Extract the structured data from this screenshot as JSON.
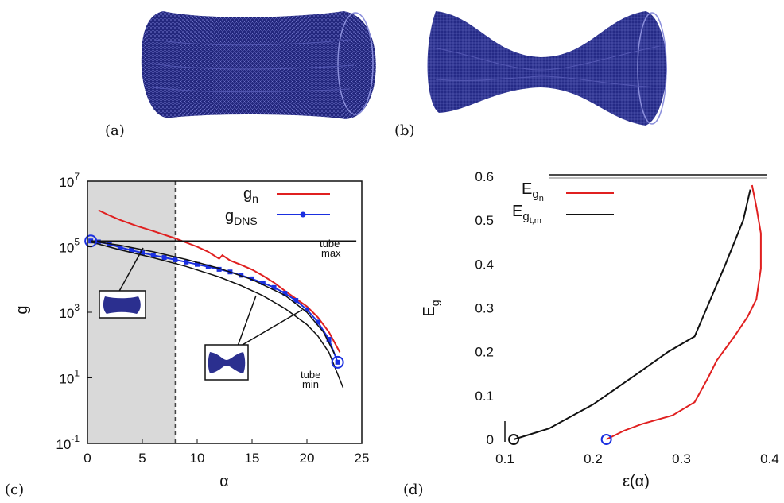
{
  "panels": {
    "a": "(a)",
    "b": "(b)",
    "c": "(c)",
    "d": "(d)"
  },
  "colors": {
    "mesh": "#2b2f8f",
    "red": "#e02020",
    "blue": "#1a2fe0",
    "black": "#111111",
    "shade": "#d9d9d9"
  },
  "chart_data": [
    {
      "type": "line",
      "panel": "(c)",
      "xlabel": "α",
      "ylabel": "g",
      "yscale": "log",
      "xlim": [
        0,
        25
      ],
      "ylim": [
        0.1,
        10000000
      ],
      "x_ticks": [
        "0",
        "5",
        "10",
        "15",
        "20",
        "25"
      ],
      "y_ticks": [
        {
          "base": "10",
          "exp": "7"
        },
        {
          "base": "10",
          "exp": "5"
        },
        {
          "base": "10",
          "exp": "3"
        },
        {
          "base": "10",
          "exp": "1"
        },
        {
          "base": "10",
          "exp": "-1"
        }
      ],
      "shaded_region": [
        0,
        8
      ],
      "dashed_vline": 8,
      "legend_position": "top-right",
      "legend": [
        {
          "main": "g",
          "sub": "n",
          "color": "#e02020"
        },
        {
          "main": "g",
          "sub": "DNS",
          "color": "#1a2fe0"
        }
      ],
      "reference_lines": [
        {
          "label": [
            "tube",
            "max"
          ],
          "y": 150000
        },
        {
          "label": [
            "tube",
            "min"
          ]
        }
      ],
      "series": [
        {
          "name": "g_n",
          "color": "#e02020",
          "x": [
            1.0,
            2.0,
            3.0,
            4.5,
            6.0,
            8.0,
            10.0,
            11.0,
            12.0,
            12.3,
            13.0,
            14.0,
            15.0,
            16.0,
            17.0,
            18.0,
            19.0,
            20.0,
            21.0,
            22.0,
            23.0
          ],
          "y": [
            1300000,
            900000,
            650000,
            430000,
            300000,
            180000,
            100000,
            70000,
            43000,
            55000,
            38000,
            28000,
            20000,
            13000,
            8000,
            4500,
            2600,
            1500,
            700,
            250,
            60
          ]
        },
        {
          "name": "g_DNS",
          "color": "#1a2fe0",
          "markers": true,
          "x": [
            0.3,
            1.0,
            2.0,
            3.0,
            4.0,
            5.0,
            6.0,
            7.0,
            8.0,
            9.0,
            10.0,
            11.0,
            12.0,
            13.0,
            14.0,
            15.0,
            16.0,
            17.0,
            18.0,
            19.0,
            20.0,
            21.0,
            22.0,
            22.8
          ],
          "y": [
            150000,
            140000,
            120000,
            95000,
            78000,
            65000,
            55000,
            47000,
            40000,
            34000,
            29000,
            24500,
            20500,
            17000,
            13500,
            10500,
            7900,
            5700,
            3800,
            2300,
            1200,
            500,
            150,
            30
          ]
        },
        {
          "name": "tube_max",
          "color": "#111111",
          "x": [
            0.3,
            24.5
          ],
          "y": [
            150000,
            150000
          ]
        },
        {
          "name": "tube_min",
          "color": "#111111",
          "x": [
            0.3,
            3,
            6,
            9,
            12,
            14,
            16,
            18,
            20,
            21,
            22,
            23.3
          ],
          "y": [
            140000,
            80000,
            46000,
            25000,
            12000,
            6500,
            3200,
            1300,
            420,
            190,
            60,
            5
          ]
        },
        {
          "name": "tube_mid",
          "color": "#111111",
          "x": [
            0.3,
            3,
            6,
            9,
            12,
            15,
            18,
            20,
            21.5,
            22.5
          ],
          "y": [
            150000,
            110000,
            70000,
            41000,
            22000,
            10000,
            3300,
            1000,
            250,
            55
          ]
        }
      ],
      "endpoint_markers": [
        {
          "x": 0.3,
          "y": 150000
        },
        {
          "x": 22.8,
          "y": 30
        }
      ]
    },
    {
      "type": "line",
      "panel": "(d)",
      "xlabel": "ε(α)",
      "ylabel": "E",
      "ylabel_sub": "g",
      "xlim": [
        0.1,
        0.4
      ],
      "ylim": [
        0,
        0.6
      ],
      "x_ticks": [
        "0.1",
        "0.2",
        "0.3",
        "0.4"
      ],
      "y_ticks": [
        "0",
        "0.1",
        "0.2",
        "0.3",
        "0.4",
        "0.5",
        "0.6"
      ],
      "legend_position": "top-left",
      "legend": [
        {
          "main": "E",
          "sub": "g",
          "subsub": "n",
          "color": "#e02020"
        },
        {
          "main": "E",
          "sub": "g",
          "subsub": "t,m",
          "color": "#111111"
        }
      ],
      "series": [
        {
          "name": "E_gn",
          "color": "#e02020",
          "x": [
            0.215,
            0.235,
            0.255,
            0.29,
            0.315,
            0.33,
            0.34,
            0.36,
            0.375,
            0.385,
            0.39,
            0.39,
            0.385,
            0.38
          ],
          "y": [
            0.0,
            0.02,
            0.035,
            0.055,
            0.085,
            0.14,
            0.18,
            0.235,
            0.28,
            0.32,
            0.39,
            0.47,
            0.53,
            0.58
          ]
        },
        {
          "name": "E_gt_m",
          "color": "#111111",
          "x": [
            0.11,
            0.15,
            0.2,
            0.25,
            0.285,
            0.315,
            0.35,
            0.37,
            0.378
          ],
          "y": [
            0.0,
            0.025,
            0.08,
            0.15,
            0.2,
            0.235,
            0.4,
            0.5,
            0.57
          ]
        }
      ],
      "endpoint_markers": [
        {
          "x": 0.215,
          "y": 0.0,
          "color": "#1a2fe0"
        },
        {
          "x": 0.11,
          "y": 0.0,
          "color": "#111111"
        }
      ]
    }
  ]
}
